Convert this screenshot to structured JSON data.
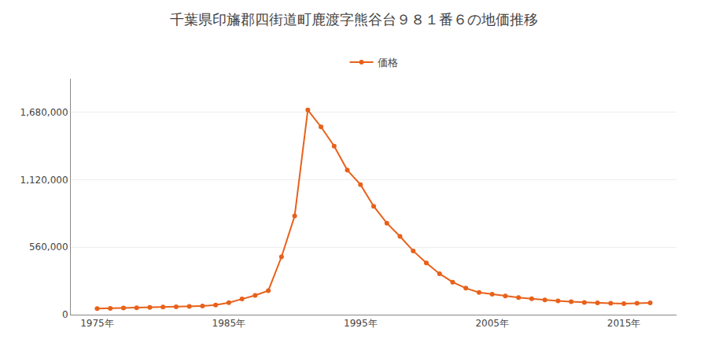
{
  "chart_data": {
    "type": "line",
    "title": "千葉県印旛郡四街道町鹿渡字熊谷台９８１番６の地価推移",
    "x": [
      1975,
      1976,
      1977,
      1978,
      1979,
      1980,
      1981,
      1982,
      1983,
      1984,
      1985,
      1986,
      1987,
      1988,
      1989,
      1990,
      1991,
      1992,
      1993,
      1994,
      1995,
      1996,
      1997,
      1998,
      1999,
      2000,
      2001,
      2002,
      2003,
      2004,
      2005,
      2006,
      2007,
      2008,
      2009,
      2010,
      2011,
      2012,
      2013,
      2014,
      2015,
      2016,
      2017
    ],
    "series": [
      {
        "name": "価格",
        "color": "#e8611a",
        "marker": "circle",
        "values": [
          50000,
          53000,
          55000,
          57000,
          60000,
          63000,
          66000,
          68000,
          72000,
          80000,
          100000,
          130000,
          160000,
          200000,
          480000,
          820000,
          1700000,
          1560000,
          1400000,
          1200000,
          1080000,
          900000,
          760000,
          650000,
          530000,
          430000,
          340000,
          270000,
          220000,
          185000,
          170000,
          155000,
          142000,
          132000,
          122000,
          115000,
          108000,
          102000,
          98000,
          95000,
          92000,
          95000,
          98000
        ]
      }
    ],
    "xlim": [
      1973,
      2019
    ],
    "xticks": [
      {
        "value": 1975,
        "label": "1975年"
      },
      {
        "value": 1985,
        "label": "1985年"
      },
      {
        "value": 1995,
        "label": "1995年"
      },
      {
        "value": 2005,
        "label": "2005年"
      },
      {
        "value": 2015,
        "label": "2015年"
      }
    ],
    "ylim": [
      0,
      1960000
    ],
    "yticks": [
      0,
      {
        "value": 560000,
        "label": "560,000"
      },
      {
        "value": 1120000,
        "label": "1,120,000"
      },
      {
        "value": 1680000,
        "label": "1,680,000"
      }
    ],
    "grid": "y",
    "legend": "top"
  }
}
